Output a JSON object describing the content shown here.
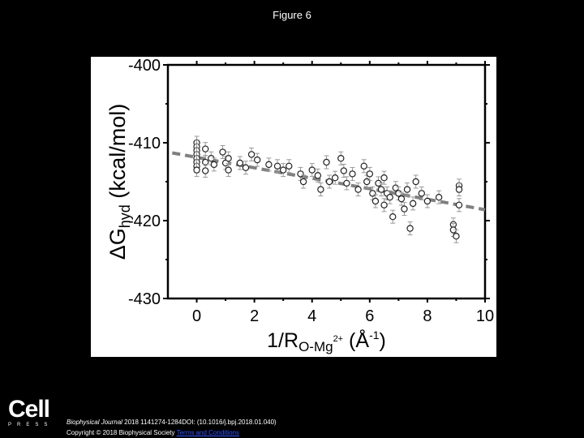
{
  "header": {
    "title": "Figure 6"
  },
  "footer": {
    "logo": {
      "main": "Cell",
      "sub": "PRESS"
    },
    "citation_journal": "Biophysical Journal",
    "citation_rest": " 2018 1141274-1284DOI: (10.1016/j.bpj.2018.01.040)",
    "copyright": "Copyright © 2018 Biophysical Society ",
    "terms_link": "Terms and Conditions"
  },
  "chart_data": {
    "type": "scatter",
    "title": "",
    "xlabel": "1/R O-Mg2+ (Å^-1)",
    "ylabel": "ΔGhyd (kcal/mol)",
    "xlim": [
      -1,
      10
    ],
    "ylim": [
      -430,
      -400
    ],
    "xticks": [
      0,
      2,
      4,
      6,
      8,
      10
    ],
    "yticks": [
      -400,
      -410,
      -420,
      -430
    ],
    "grid": false,
    "legend": null,
    "series": [
      {
        "name": "data (open circles with error bars)",
        "points": [
          [
            0,
            -410
          ],
          [
            0,
            -410.5
          ],
          [
            0,
            -411
          ],
          [
            0,
            -411.5
          ],
          [
            0,
            -412
          ],
          [
            0,
            -412.5
          ],
          [
            0,
            -413
          ],
          [
            0,
            -413.5
          ],
          [
            0.3,
            -410.8
          ],
          [
            0.3,
            -412.5
          ],
          [
            0.3,
            -413.6
          ],
          [
            0.5,
            -412.0
          ],
          [
            0.6,
            -412.8
          ],
          [
            0.9,
            -411.2
          ],
          [
            1.0,
            -412.6
          ],
          [
            1.1,
            -413.5
          ],
          [
            1.1,
            -412.0
          ],
          [
            1.5,
            -412.6
          ],
          [
            1.7,
            -413.2
          ],
          [
            1.9,
            -411.5
          ],
          [
            2.1,
            -412.2
          ],
          [
            2.5,
            -412.8
          ],
          [
            2.8,
            -413.0
          ],
          [
            3.0,
            -413.5
          ],
          [
            3.2,
            -413.0
          ],
          [
            3.6,
            -414.0
          ],
          [
            3.7,
            -415.0
          ],
          [
            4.0,
            -413.5
          ],
          [
            4.2,
            -414.2
          ],
          [
            4.3,
            -416.0
          ],
          [
            4.5,
            -412.5
          ],
          [
            4.6,
            -415.0
          ],
          [
            4.8,
            -414.5
          ],
          [
            5.0,
            -412.0
          ],
          [
            5.1,
            -413.6
          ],
          [
            5.2,
            -415.2
          ],
          [
            5.4,
            -414.0
          ],
          [
            5.6,
            -416.0
          ],
          [
            5.8,
            -413.0
          ],
          [
            5.9,
            -415.0
          ],
          [
            6.0,
            -414.0
          ],
          [
            6.1,
            -416.5
          ],
          [
            6.2,
            -417.5
          ],
          [
            6.3,
            -415.2
          ],
          [
            6.4,
            -416.0
          ],
          [
            6.5,
            -418.0
          ],
          [
            6.5,
            -414.5
          ],
          [
            6.6,
            -416.5
          ],
          [
            6.7,
            -417.0
          ],
          [
            6.8,
            -419.5
          ],
          [
            6.9,
            -415.8
          ],
          [
            7.0,
            -416.5
          ],
          [
            7.1,
            -417.2
          ],
          [
            7.2,
            -418.5
          ],
          [
            7.3,
            -416.0
          ],
          [
            7.4,
            -421.0
          ],
          [
            7.5,
            -417.8
          ],
          [
            7.6,
            -415.0
          ],
          [
            7.8,
            -416.5
          ],
          [
            8.0,
            -417.5
          ],
          [
            8.4,
            -417.0
          ],
          [
            8.9,
            -420.5
          ],
          [
            8.9,
            -421.2
          ],
          [
            9.0,
            -422.0
          ],
          [
            9.1,
            -418.0
          ],
          [
            9.1,
            -415.5
          ],
          [
            9.1,
            -416.0
          ]
        ]
      },
      {
        "name": "linear fit (dashed)",
        "x": [
          -1,
          10
        ],
        "y": [
          -411.2,
          -418.6
        ]
      }
    ]
  }
}
